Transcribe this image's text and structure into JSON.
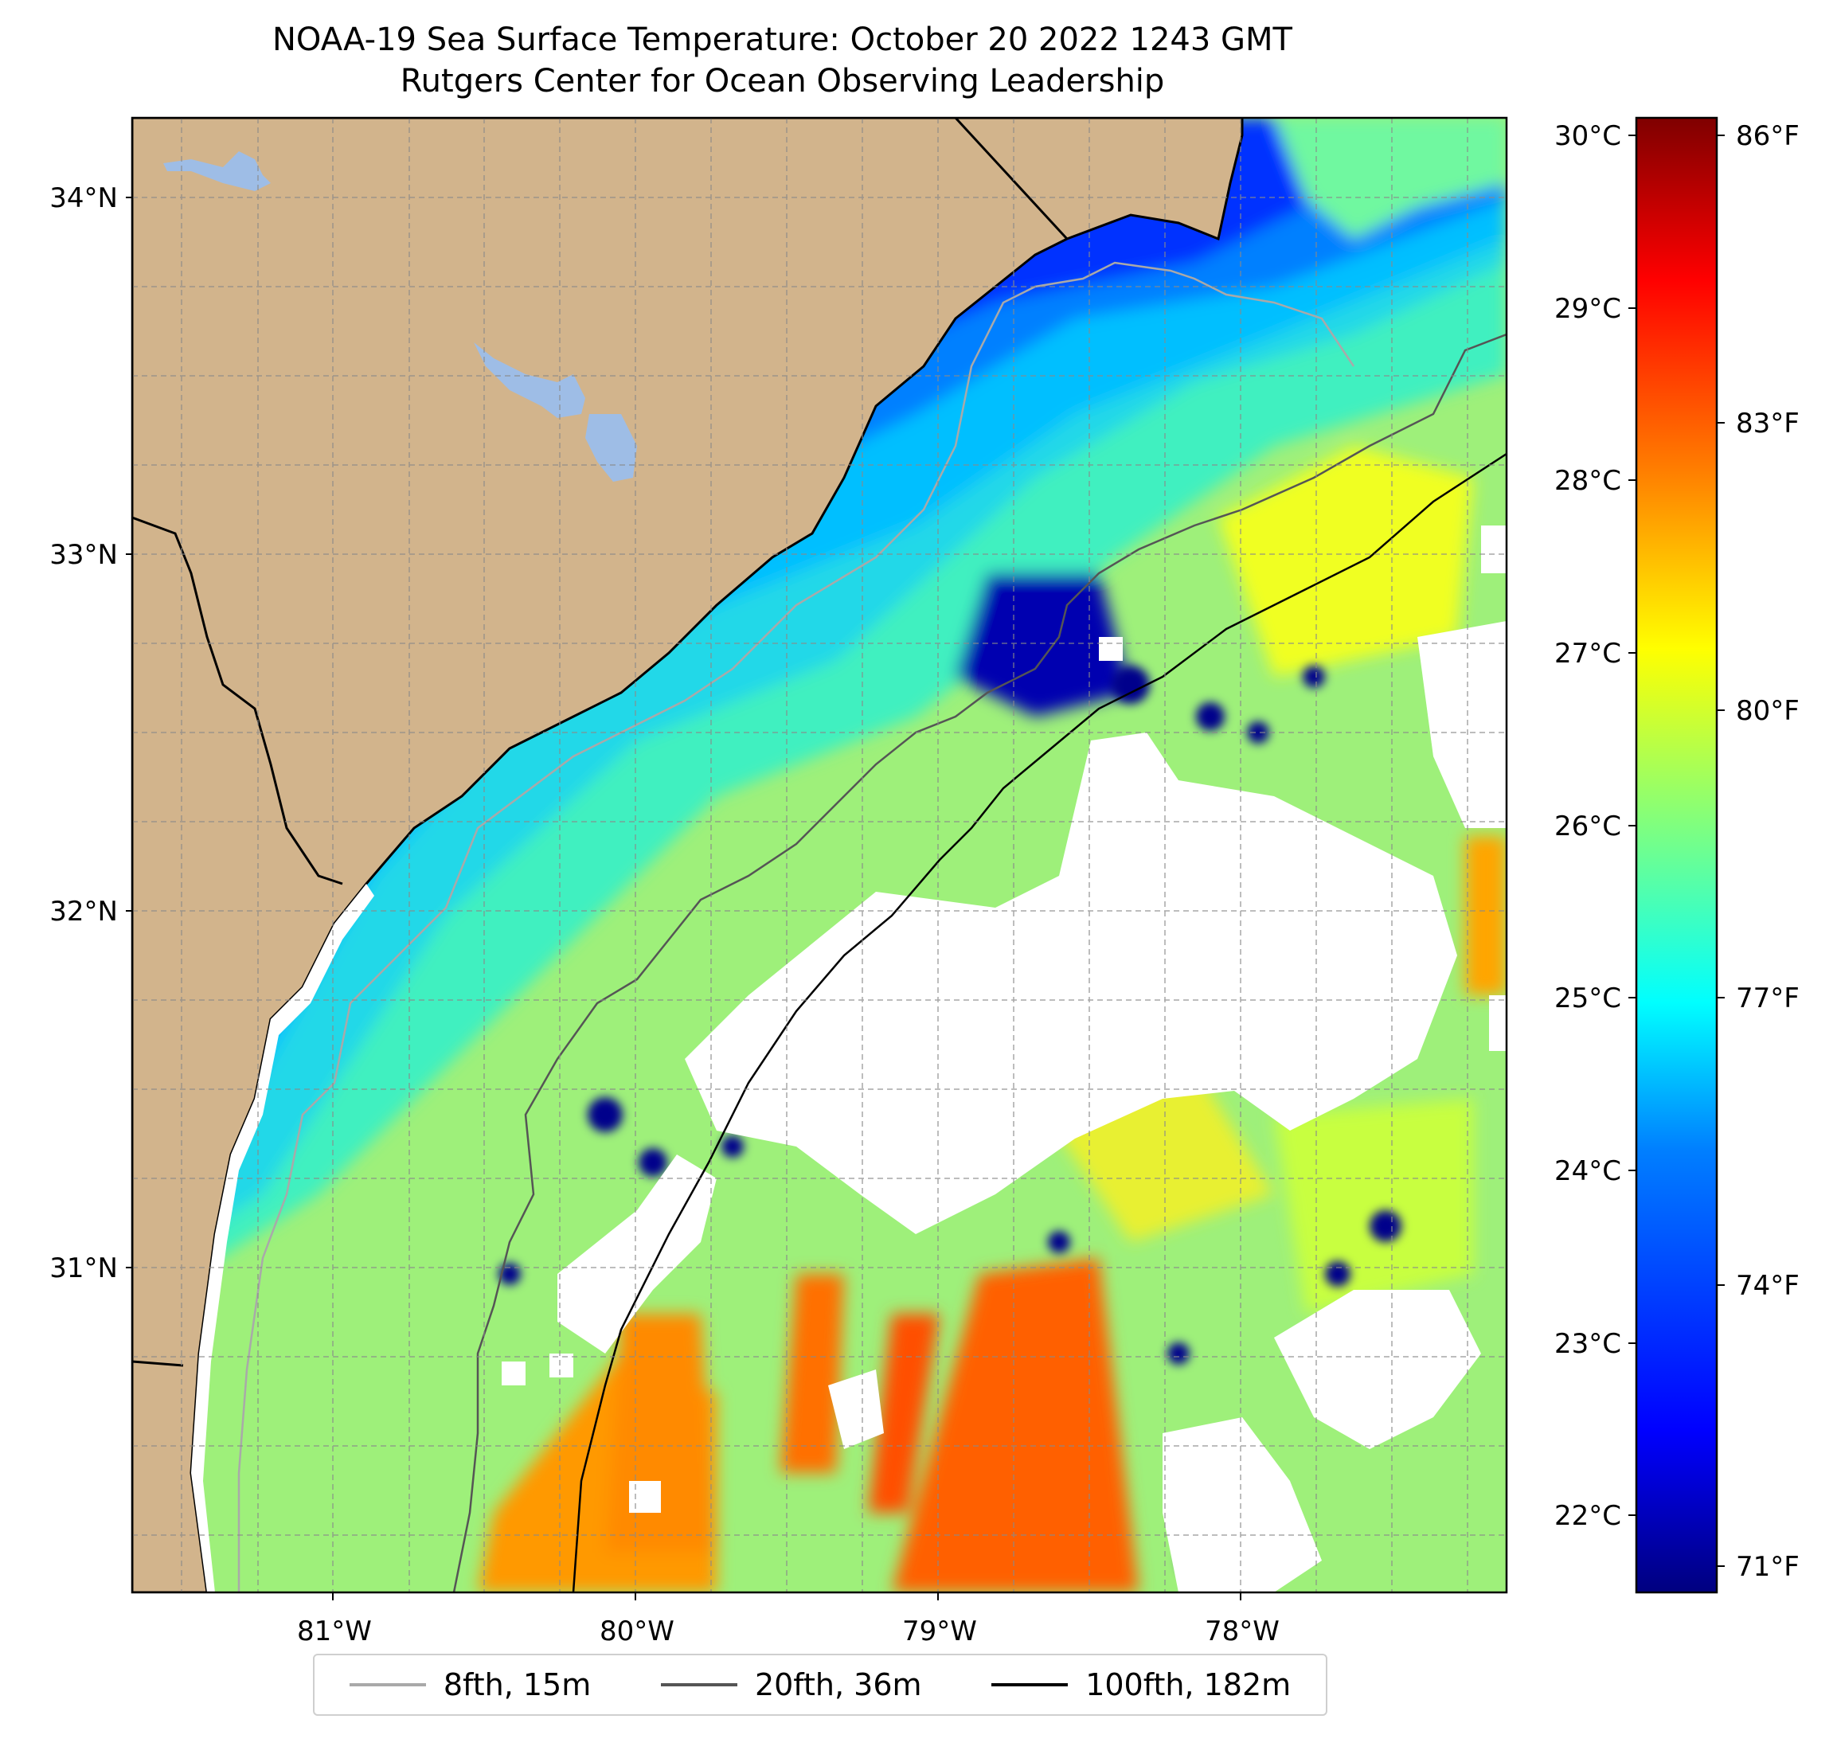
{
  "title": {
    "line1": "NOAA-19 Sea Surface Temperature: October 20 2022 1243 GMT",
    "line2": "Rutgers Center for Ocean Observing Leadership"
  },
  "map": {
    "lat_labels": [
      "34°N",
      "33°N",
      "32°N",
      "31°N"
    ],
    "lon_labels": [
      "81°W",
      "80°W",
      "79°W",
      "78°W"
    ],
    "land_color": "#d2b48c",
    "lake_color": "#9ebde6",
    "missing_data_color": "#ffffff",
    "gridlines": "dashed-gray"
  },
  "colorbar": {
    "celsius_labels": [
      "30°C",
      "29°C",
      "28°C",
      "27°C",
      "26°C",
      "25°C",
      "24°C",
      "23°C",
      "22°C"
    ],
    "fahrenheit_labels": [
      "86°F",
      "83°F",
      "80°F",
      "77°F",
      "74°F",
      "71°F"
    ],
    "colormap": "jet",
    "colormap_stops": [
      "#00007f",
      "#0000ff",
      "#007fff",
      "#00ffff",
      "#7fff7f",
      "#ffff00",
      "#ff7f00",
      "#ff0000",
      "#7f0000"
    ]
  },
  "legend": {
    "items": [
      {
        "label": "8fth, 15m",
        "color": "#a9a9a9"
      },
      {
        "label": "20fth, 36m",
        "color": "#555555"
      },
      {
        "label": "100fth, 182m",
        "color": "#000000"
      }
    ]
  }
}
